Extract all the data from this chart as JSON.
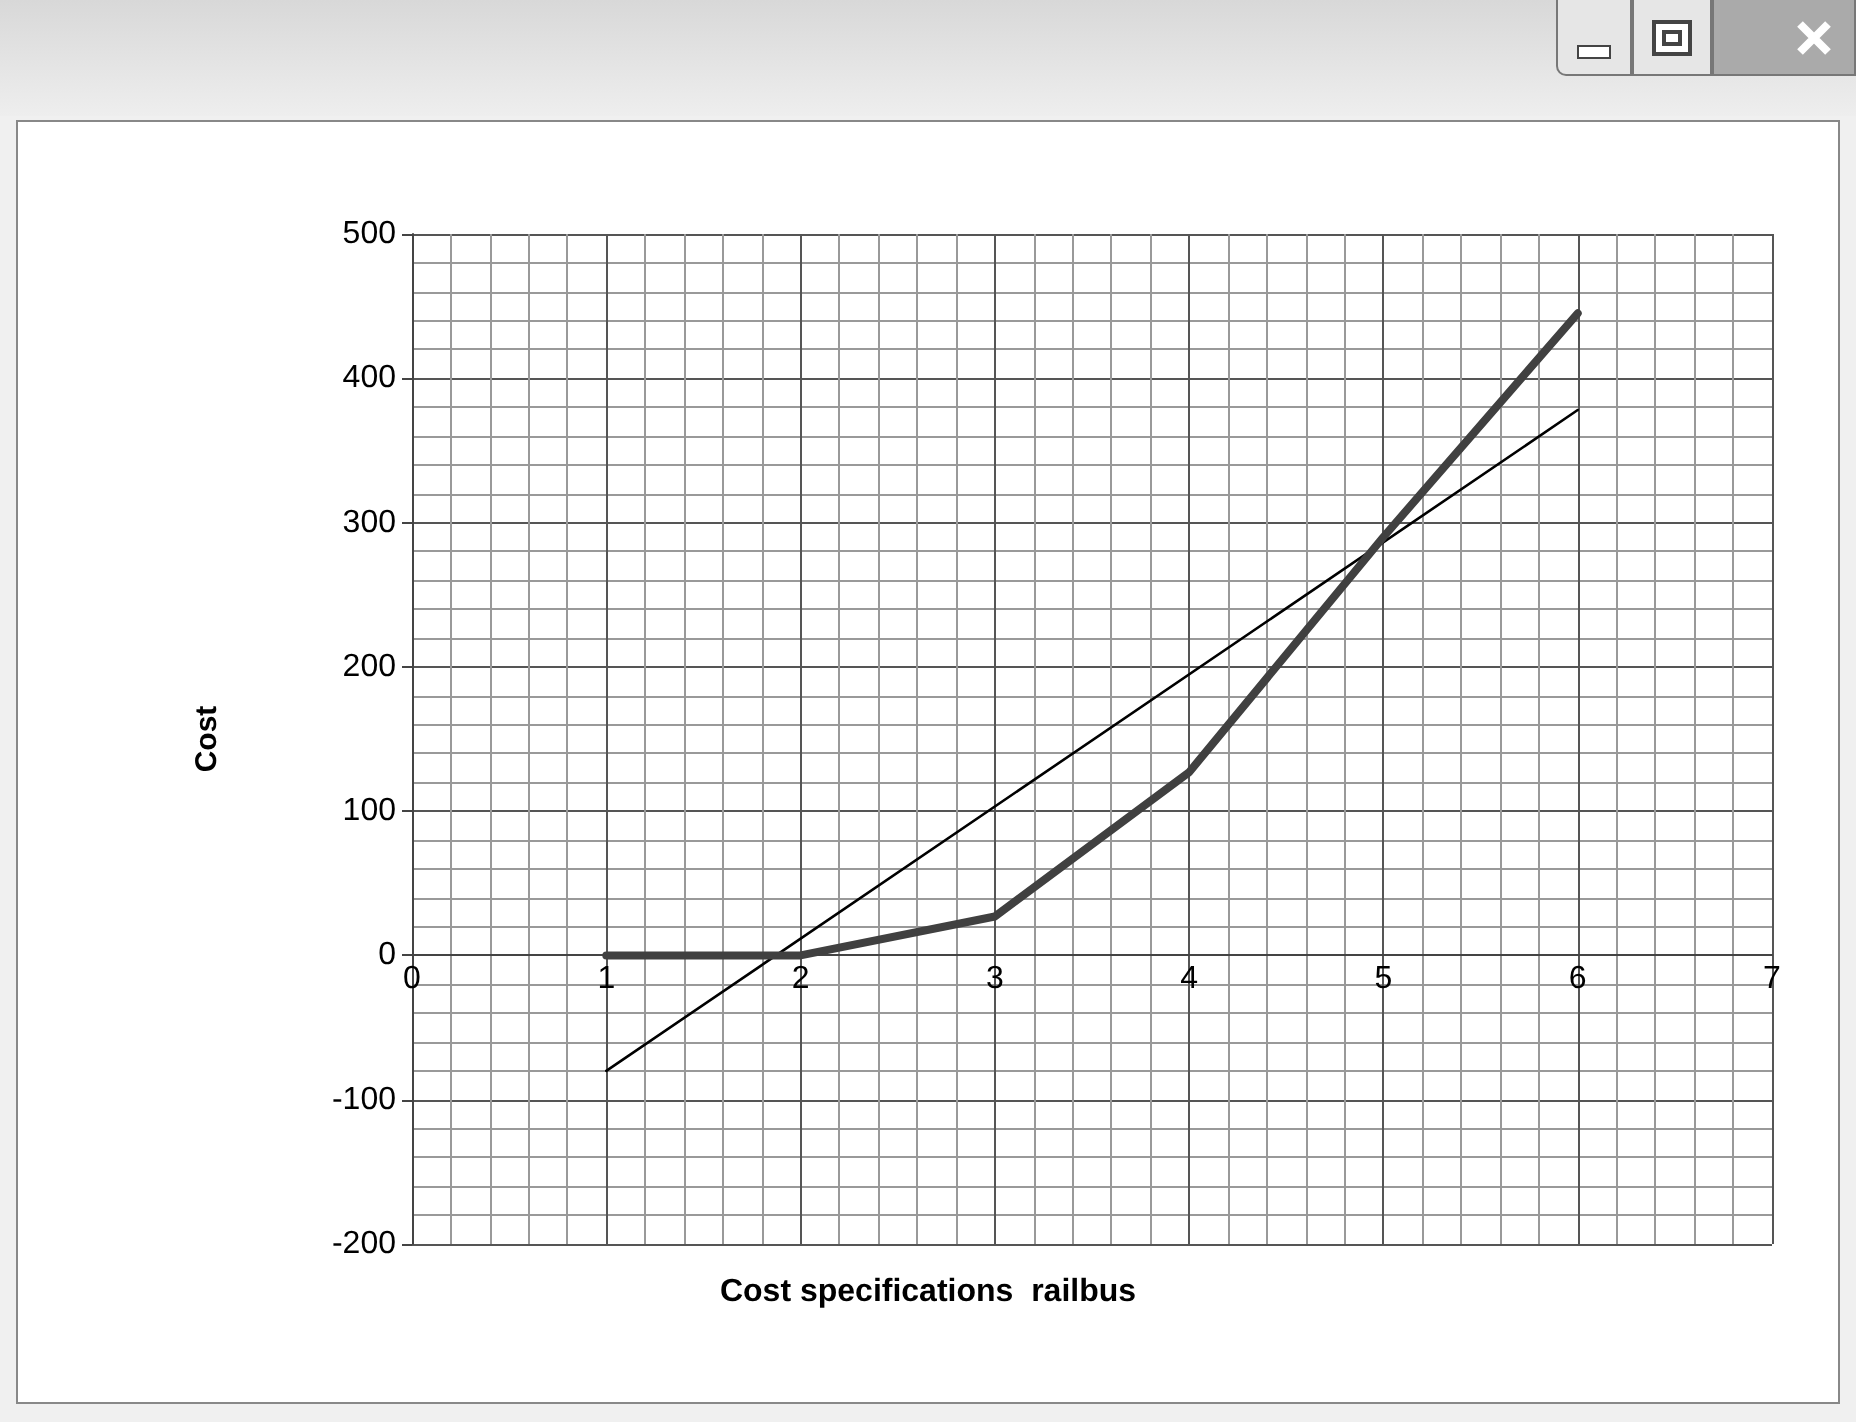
{
  "chart_data": {
    "type": "line",
    "xlabel": "Cost specifications  railbus",
    "ylabel": "Cost",
    "x": [
      1,
      2,
      3,
      4,
      5,
      6
    ],
    "series": [
      {
        "color": "#404040",
        "values": [
          0,
          0,
          27,
          127,
          290,
          445
        ]
      },
      {
        "color": "#000000",
        "x": [
          1,
          6
        ],
        "values": [
          -80,
          378
        ]
      }
    ],
    "xlim": [
      0,
      7
    ],
    "xticks": [
      0,
      1,
      2,
      3,
      4,
      5,
      6,
      7
    ],
    "ylim": [
      -200,
      500
    ],
    "yticks": [
      -200,
      -100,
      0,
      100,
      200,
      300,
      400,
      500
    ],
    "grid": true,
    "marker": "none",
    "line_style": "solid"
  }
}
